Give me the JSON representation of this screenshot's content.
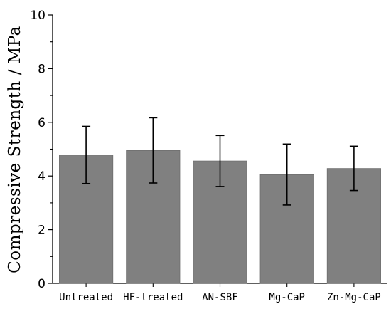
{
  "chart_data": {
    "type": "bar",
    "title": "",
    "xlabel": "",
    "ylabel": "Compressive Strength / MPa",
    "categories": [
      "Untreated",
      "HF-treated",
      "AN-SBF",
      "Mg-CaP",
      "Zn-Mg-CaP"
    ],
    "values": [
      4.78,
      4.95,
      4.56,
      4.05,
      4.28
    ],
    "error_low": [
      3.72,
      3.74,
      3.61,
      2.92,
      3.46
    ],
    "error_high": [
      5.85,
      6.17,
      5.51,
      5.19,
      5.11
    ],
    "ylim": [
      0,
      10
    ],
    "yticks": [
      "0",
      "2",
      "4",
      "6",
      "8",
      "10"
    ],
    "bar_color": "#808080",
    "grid": false,
    "legend": "none"
  }
}
